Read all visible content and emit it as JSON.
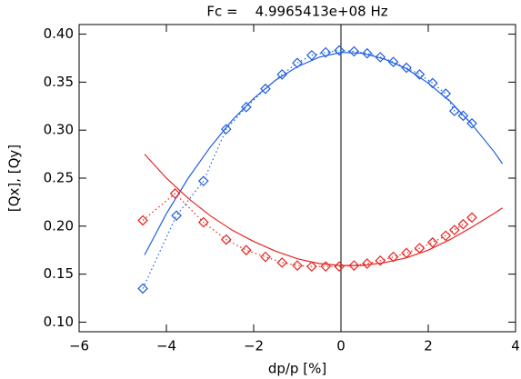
{
  "chart_data": {
    "type": "line",
    "title": "Fc =    4.9965413e+08 Hz",
    "x_label": "dp/p [%]",
    "y_label": "[Qx], [Qy]",
    "xlim": [
      -6,
      4
    ],
    "ylim": [
      0.09,
      0.41
    ],
    "xticks": [
      {
        "value": -6,
        "label": "−6"
      },
      {
        "value": -4,
        "label": "−4"
      },
      {
        "value": -2,
        "label": "−2"
      },
      0,
      2,
      4
    ],
    "yticks": [
      {
        "value": 0.1,
        "label": "0.10"
      },
      0.15,
      {
        "value": 0.2,
        "label": "0.20"
      },
      0.25,
      {
        "value": 0.3,
        "label": "0.30"
      },
      0.35,
      {
        "value": 0.4,
        "label": "0.40"
      }
    ],
    "vline": 0,
    "series": [
      {
        "color": "#1f5fe0",
        "style": "dotted",
        "marker": "diamond",
        "x": [
          -4.54,
          -3.77,
          -3.15,
          -2.63,
          -2.17,
          -1.73,
          -1.35,
          -1.0,
          -0.67,
          -0.35,
          -0.04,
          0.3,
          0.6,
          0.9,
          1.2,
          1.5,
          1.8,
          2.1,
          2.4,
          2.6,
          2.8,
          3.0
        ],
        "values": [
          0.135,
          0.211,
          0.247,
          0.301,
          0.324,
          0.343,
          0.358,
          0.37,
          0.378,
          0.381,
          0.383,
          0.382,
          0.38,
          0.376,
          0.371,
          0.365,
          0.358,
          0.349,
          0.338,
          0.32,
          0.315,
          0.307
        ]
      },
      {
        "color": "#1f5fe0",
        "style": "solid",
        "x": [
          -4.5,
          -4,
          -3.5,
          -3,
          -2.5,
          -2,
          -1.5,
          -1,
          -0.5,
          0,
          0.5,
          1,
          1.5,
          2,
          2.5,
          3,
          3.5,
          3.7
        ],
        "values": [
          0.17,
          0.213,
          0.25,
          0.282,
          0.31,
          0.333,
          0.352,
          0.366,
          0.376,
          0.381,
          0.38,
          0.374,
          0.364,
          0.349,
          0.33,
          0.306,
          0.278,
          0.265
        ]
      },
      {
        "color": "#e8231f",
        "style": "dotted",
        "marker": "diamond",
        "x": [
          -4.54,
          -3.8,
          -3.15,
          -2.63,
          -2.17,
          -1.73,
          -1.35,
          -1.0,
          -0.67,
          -0.35,
          -0.04,
          0.3,
          0.6,
          0.9,
          1.2,
          1.5,
          1.8,
          2.1,
          2.4,
          2.6,
          2.8,
          3.0
        ],
        "values": [
          0.206,
          0.234,
          0.204,
          0.186,
          0.175,
          0.168,
          0.162,
          0.159,
          0.158,
          0.158,
          0.158,
          0.159,
          0.161,
          0.164,
          0.168,
          0.172,
          0.177,
          0.183,
          0.19,
          0.196,
          0.202,
          0.209
        ]
      },
      {
        "color": "#e8231f",
        "style": "solid",
        "x": [
          -4.5,
          -4,
          -3.5,
          -3,
          -2.5,
          -2,
          -1.5,
          -1,
          -0.5,
          0,
          0.5,
          1,
          1.5,
          2,
          2.5,
          3,
          3.5,
          3.7
        ],
        "values": [
          0.275,
          0.25,
          0.229,
          0.211,
          0.196,
          0.184,
          0.174,
          0.166,
          0.161,
          0.159,
          0.159,
          0.162,
          0.167,
          0.175,
          0.186,
          0.199,
          0.213,
          0.219
        ]
      }
    ]
  }
}
